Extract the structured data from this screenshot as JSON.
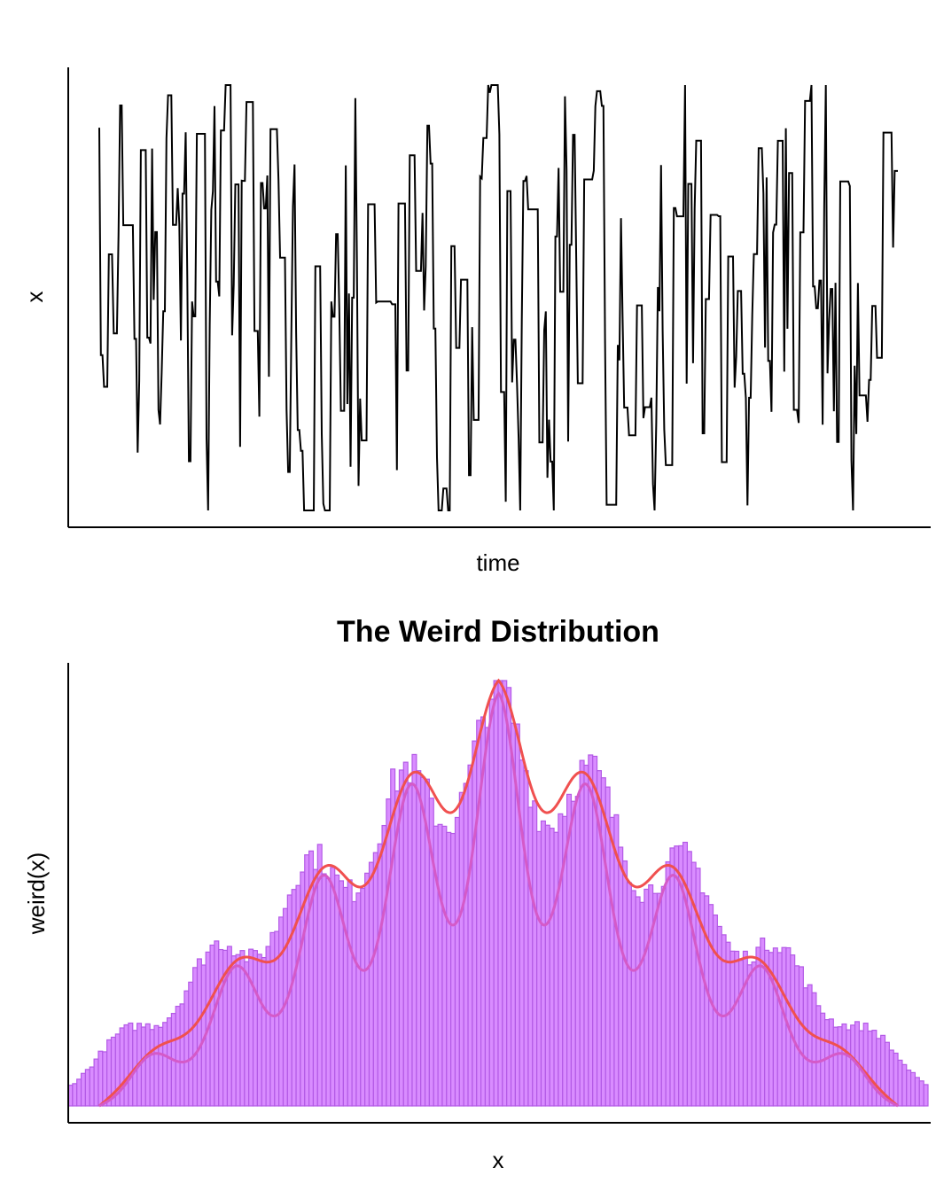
{
  "chart_data": [
    {
      "type": "line",
      "title": "",
      "xlabel": "time",
      "ylabel": "x",
      "line_color": "#000000",
      "n": 500,
      "seed": 7,
      "ylim": [
        -1,
        1
      ],
      "grid": false,
      "legend": "none"
    },
    {
      "type": "histogram",
      "title": "The Weird Distribution",
      "xlabel": "x",
      "ylabel": "weird(x)",
      "bins": 200,
      "bar_fill": "#d98cff",
      "bar_edge": "#b35ae6",
      "curves": [
        {
          "role": "true-density",
          "color": "#f0504f"
        },
        {
          "role": "estimated-density",
          "color": "#d45ac8"
        }
      ],
      "peaks": 9,
      "grid": false,
      "legend": "none"
    }
  ]
}
